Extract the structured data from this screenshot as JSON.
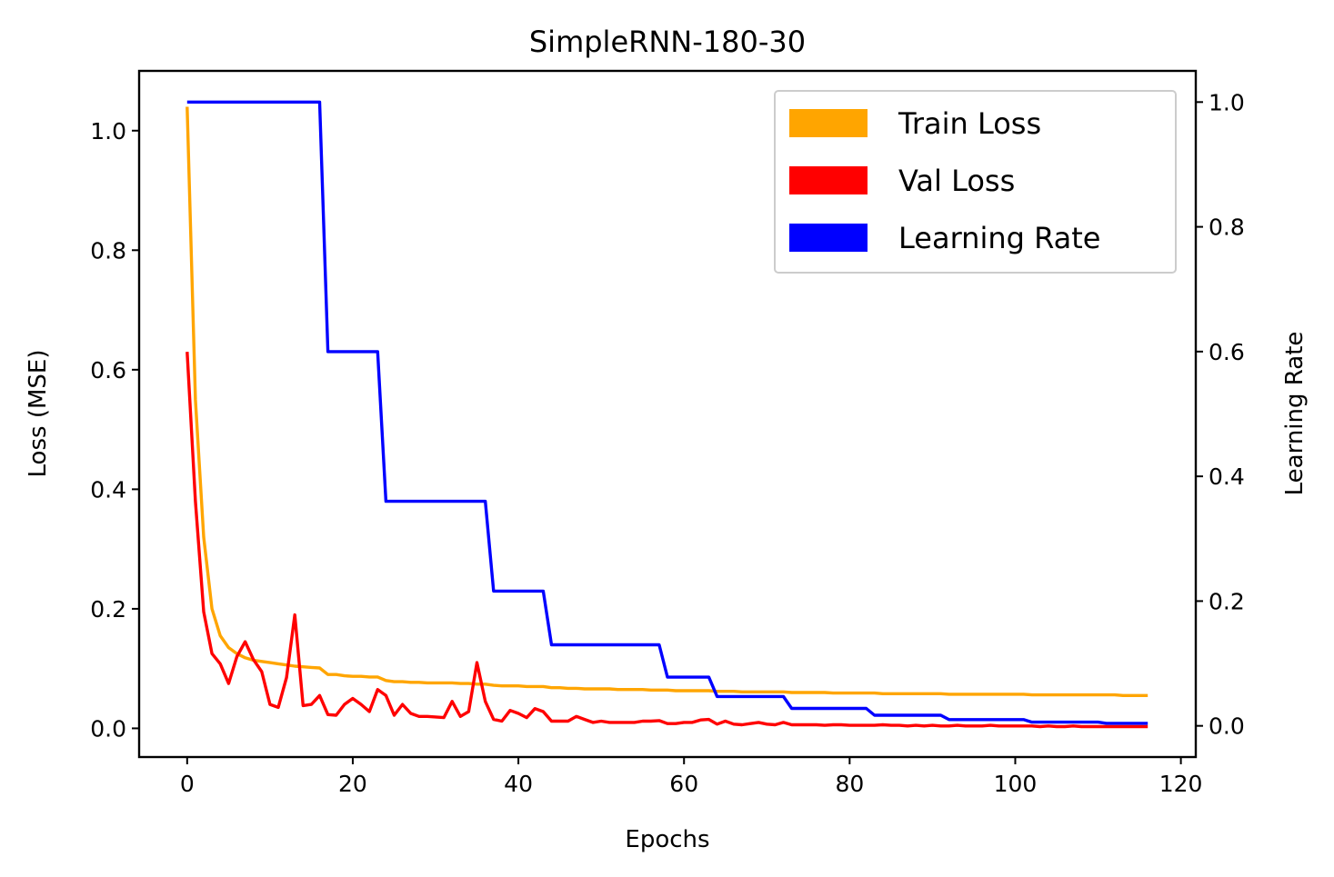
{
  "chart_data": {
    "type": "line",
    "title": "SimpleRNN-180-30",
    "xlabel": "Epochs",
    "ylabel": "Loss (MSE)",
    "y2label": "Learning Rate",
    "xlim": [
      -5.8,
      121.8
    ],
    "ylim": [
      -0.048,
      1.1
    ],
    "y2lim": [
      -0.05,
      1.05
    ],
    "xticks": [
      0,
      20,
      40,
      60,
      80,
      100,
      120
    ],
    "yticks": [
      0.0,
      0.2,
      0.4,
      0.6,
      0.8,
      1.0
    ],
    "y2ticks": [
      0.0,
      0.2,
      0.4,
      0.6,
      0.8,
      1.0
    ],
    "tick_decimals": 1,
    "grid": false,
    "legend_position": "top-right",
    "series": [
      {
        "name": "Train Loss",
        "color": "#FFA500",
        "axis": "left",
        "x": [
          0,
          1,
          2,
          3,
          4,
          5,
          6,
          7,
          8,
          9,
          10,
          11,
          12,
          13,
          14,
          15,
          16,
          17,
          18,
          19,
          20,
          21,
          22,
          23,
          24,
          25,
          26,
          27,
          28,
          29,
          30,
          31,
          32,
          33,
          34,
          35,
          36,
          37,
          38,
          39,
          40,
          41,
          42,
          43,
          44,
          45,
          46,
          47,
          48,
          49,
          50,
          51,
          52,
          53,
          54,
          55,
          56,
          57,
          58,
          59,
          60,
          61,
          62,
          63,
          64,
          65,
          66,
          67,
          68,
          69,
          70,
          71,
          72,
          73,
          74,
          75,
          76,
          77,
          78,
          79,
          80,
          81,
          82,
          83,
          84,
          85,
          86,
          87,
          88,
          89,
          90,
          91,
          92,
          93,
          94,
          95,
          96,
          97,
          98,
          99,
          100,
          101,
          102,
          103,
          104,
          105,
          106,
          107,
          108,
          109,
          110,
          111,
          112,
          113,
          114,
          115,
          116
        ],
        "values": [
          1.04,
          0.55,
          0.32,
          0.2,
          0.155,
          0.135,
          0.125,
          0.118,
          0.114,
          0.112,
          0.11,
          0.108,
          0.106,
          0.104,
          0.103,
          0.102,
          0.101,
          0.09,
          0.09,
          0.088,
          0.087,
          0.087,
          0.086,
          0.086,
          0.08,
          0.078,
          0.078,
          0.077,
          0.077,
          0.076,
          0.076,
          0.076,
          0.076,
          0.075,
          0.075,
          0.074,
          0.074,
          0.072,
          0.071,
          0.071,
          0.071,
          0.07,
          0.07,
          0.07,
          0.068,
          0.068,
          0.067,
          0.067,
          0.066,
          0.066,
          0.066,
          0.066,
          0.065,
          0.065,
          0.065,
          0.065,
          0.064,
          0.064,
          0.064,
          0.063,
          0.063,
          0.063,
          0.063,
          0.063,
          0.062,
          0.062,
          0.062,
          0.061,
          0.061,
          0.061,
          0.061,
          0.061,
          0.061,
          0.06,
          0.06,
          0.06,
          0.06,
          0.06,
          0.059,
          0.059,
          0.059,
          0.059,
          0.059,
          0.059,
          0.058,
          0.058,
          0.058,
          0.058,
          0.058,
          0.058,
          0.058,
          0.058,
          0.057,
          0.057,
          0.057,
          0.057,
          0.057,
          0.057,
          0.057,
          0.057,
          0.057,
          0.057,
          0.056,
          0.056,
          0.056,
          0.056,
          0.056,
          0.056,
          0.056,
          0.056,
          0.056,
          0.056,
          0.056,
          0.055,
          0.055,
          0.055,
          0.055
        ]
      },
      {
        "name": "Val Loss",
        "color": "#FF0000",
        "axis": "left",
        "x": [
          0,
          1,
          2,
          3,
          4,
          5,
          6,
          7,
          8,
          9,
          10,
          11,
          12,
          13,
          14,
          15,
          16,
          17,
          18,
          19,
          20,
          21,
          22,
          23,
          24,
          25,
          26,
          27,
          28,
          29,
          30,
          31,
          32,
          33,
          34,
          35,
          36,
          37,
          38,
          39,
          40,
          41,
          42,
          43,
          44,
          45,
          46,
          47,
          48,
          49,
          50,
          51,
          52,
          53,
          54,
          55,
          56,
          57,
          58,
          59,
          60,
          61,
          62,
          63,
          64,
          65,
          66,
          67,
          68,
          69,
          70,
          71,
          72,
          73,
          74,
          75,
          76,
          77,
          78,
          79,
          80,
          81,
          82,
          83,
          84,
          85,
          86,
          87,
          88,
          89,
          90,
          91,
          92,
          93,
          94,
          95,
          96,
          97,
          98,
          99,
          100,
          101,
          102,
          103,
          104,
          105,
          106,
          107,
          108,
          109,
          110,
          111,
          112,
          113,
          114,
          115,
          116
        ],
        "values": [
          0.63,
          0.38,
          0.195,
          0.125,
          0.108,
          0.075,
          0.12,
          0.145,
          0.115,
          0.095,
          0.04,
          0.035,
          0.085,
          0.19,
          0.038,
          0.04,
          0.055,
          0.023,
          0.022,
          0.04,
          0.05,
          0.04,
          0.028,
          0.065,
          0.055,
          0.022,
          0.04,
          0.025,
          0.02,
          0.02,
          0.019,
          0.018,
          0.045,
          0.02,
          0.028,
          0.11,
          0.045,
          0.015,
          0.012,
          0.03,
          0.025,
          0.018,
          0.033,
          0.028,
          0.012,
          0.012,
          0.012,
          0.02,
          0.015,
          0.01,
          0.012,
          0.01,
          0.01,
          0.01,
          0.01,
          0.012,
          0.012,
          0.013,
          0.008,
          0.008,
          0.01,
          0.01,
          0.014,
          0.015,
          0.007,
          0.012,
          0.007,
          0.006,
          0.008,
          0.01,
          0.007,
          0.006,
          0.01,
          0.006,
          0.006,
          0.006,
          0.006,
          0.005,
          0.006,
          0.006,
          0.005,
          0.005,
          0.005,
          0.005,
          0.006,
          0.005,
          0.005,
          0.004,
          0.005,
          0.004,
          0.005,
          0.004,
          0.004,
          0.005,
          0.004,
          0.004,
          0.004,
          0.005,
          0.004,
          0.004,
          0.004,
          0.004,
          0.004,
          0.003,
          0.004,
          0.003,
          0.003,
          0.004,
          0.003,
          0.003,
          0.003,
          0.003,
          0.003,
          0.003,
          0.003,
          0.003,
          0.003
        ]
      },
      {
        "name": "Learning Rate",
        "color": "#0000FF",
        "axis": "right",
        "step": true,
        "x": [
          0,
          16,
          17,
          23,
          24,
          36,
          37,
          43,
          44,
          57,
          58,
          63,
          64,
          72,
          73,
          82,
          83,
          91,
          92,
          101,
          102,
          110,
          111,
          116
        ],
        "values": [
          1.0,
          1.0,
          0.6,
          0.6,
          0.36,
          0.36,
          0.216,
          0.216,
          0.13,
          0.13,
          0.078,
          0.078,
          0.047,
          0.047,
          0.028,
          0.028,
          0.017,
          0.017,
          0.01,
          0.01,
          0.006,
          0.006,
          0.004,
          0.004
        ]
      }
    ]
  }
}
